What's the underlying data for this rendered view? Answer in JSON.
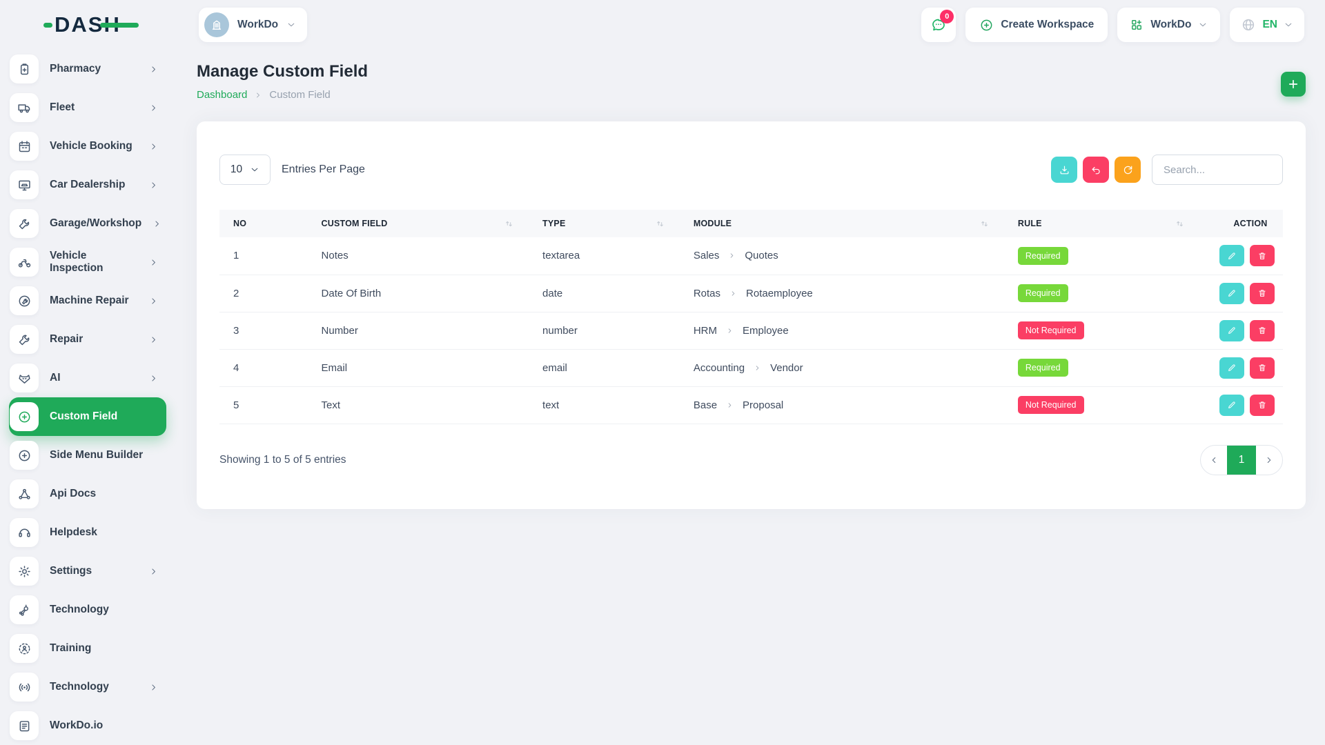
{
  "colors": {
    "green": "#1faa59",
    "teal": "#49d6d2",
    "pink": "#fb3e64",
    "orange": "#fba21c",
    "badge_green": "#77d83a",
    "bg": "#f1f2f6",
    "chat_green": "#21b567",
    "notification_badge_pink": "#fd2e67",
    "avatar_blue": "#a9c6da"
  },
  "logo": {
    "text": "DASH"
  },
  "topbar": {
    "workspace_switcher": {
      "label": "WorkDo",
      "icon": "building-icon"
    },
    "messages": {
      "icon": "chat-icon",
      "badge": "0"
    },
    "create_workspace": {
      "label": "Create Workspace",
      "icon": "plus-circle-icon"
    },
    "apps_menu": {
      "label": "WorkDo",
      "icon": "grid-plus-icon"
    },
    "language": {
      "label": "EN",
      "icon": "globe-icon"
    }
  },
  "sidebar": {
    "items": [
      {
        "label": "Pharmacy",
        "icon": "pharmacy-icon",
        "chevron": true,
        "active": false
      },
      {
        "label": "Fleet",
        "icon": "fleet-icon",
        "chevron": true,
        "active": false
      },
      {
        "label": "Vehicle Booking",
        "icon": "vehicle-booking-icon",
        "chevron": true,
        "active": false
      },
      {
        "label": "Car Dealership",
        "icon": "car-dealership-icon",
        "chevron": true,
        "active": false
      },
      {
        "label": "Garage/Workshop",
        "icon": "garage-workshop-icon",
        "chevron": true,
        "active": false
      },
      {
        "label": "Vehicle Inspection",
        "icon": "vehicle-inspection-icon",
        "chevron": true,
        "active": false
      },
      {
        "label": "Machine Repair",
        "icon": "machine-repair-icon",
        "chevron": true,
        "active": false
      },
      {
        "label": "Repair",
        "icon": "repair-icon",
        "chevron": true,
        "active": false
      },
      {
        "label": "AI",
        "icon": "ai-icon",
        "chevron": true,
        "active": false
      },
      {
        "label": "Custom Field",
        "icon": "custom-field-icon",
        "chevron": false,
        "active": true
      },
      {
        "label": "Side Menu Builder",
        "icon": "side-menu-builder-icon",
        "chevron": false,
        "active": false
      },
      {
        "label": "Api Docs",
        "icon": "api-docs-icon",
        "chevron": false,
        "active": false
      },
      {
        "label": "Helpdesk",
        "icon": "helpdesk-icon",
        "chevron": false,
        "active": false
      },
      {
        "label": "Settings",
        "icon": "settings-icon",
        "chevron": true,
        "active": false
      },
      {
        "label": "Technology",
        "icon": "technology-icon",
        "chevron": false,
        "active": false
      },
      {
        "label": "Training",
        "icon": "training-icon",
        "chevron": false,
        "active": false
      },
      {
        "label": "Technology",
        "icon": "technology-alt-icon",
        "chevron": true,
        "active": false
      },
      {
        "label": "WorkDo.io",
        "icon": "workdo-io-icon",
        "chevron": false,
        "active": false
      }
    ]
  },
  "page": {
    "title": "Manage Custom Field",
    "breadcrumb": {
      "home": "Dashboard",
      "current": "Custom Field"
    }
  },
  "toolbar": {
    "entries_value": "10",
    "entries_label": "Entries Per Page",
    "search_placeholder": "Search..."
  },
  "table": {
    "columns": [
      {
        "label": "NO",
        "sortable": false
      },
      {
        "label": "CUSTOM FIELD",
        "sortable": true
      },
      {
        "label": "TYPE",
        "sortable": true
      },
      {
        "label": "MODULE",
        "sortable": true
      },
      {
        "label": "RULE",
        "sortable": true
      },
      {
        "label": "ACTION",
        "sortable": false
      }
    ],
    "rows": [
      {
        "no": "1",
        "custom_field": "Notes",
        "type": "textarea",
        "module": [
          "Sales",
          "Quotes"
        ],
        "rule": "Required"
      },
      {
        "no": "2",
        "custom_field": "Date Of Birth",
        "type": "date",
        "module": [
          "Rotas",
          "Rotaemployee"
        ],
        "rule": "Required"
      },
      {
        "no": "3",
        "custom_field": "Number",
        "type": "number",
        "module": [
          "HRM",
          "Employee"
        ],
        "rule": "Not Required"
      },
      {
        "no": "4",
        "custom_field": "Email",
        "type": "email",
        "module": [
          "Accounting",
          "Vendor"
        ],
        "rule": "Required"
      },
      {
        "no": "5",
        "custom_field": "Text",
        "type": "text",
        "module": [
          "Base",
          "Proposal"
        ],
        "rule": "Not Required"
      }
    ]
  },
  "footer": {
    "showing_text": "Showing 1 to 5 of 5 entries",
    "current_page": "1"
  }
}
